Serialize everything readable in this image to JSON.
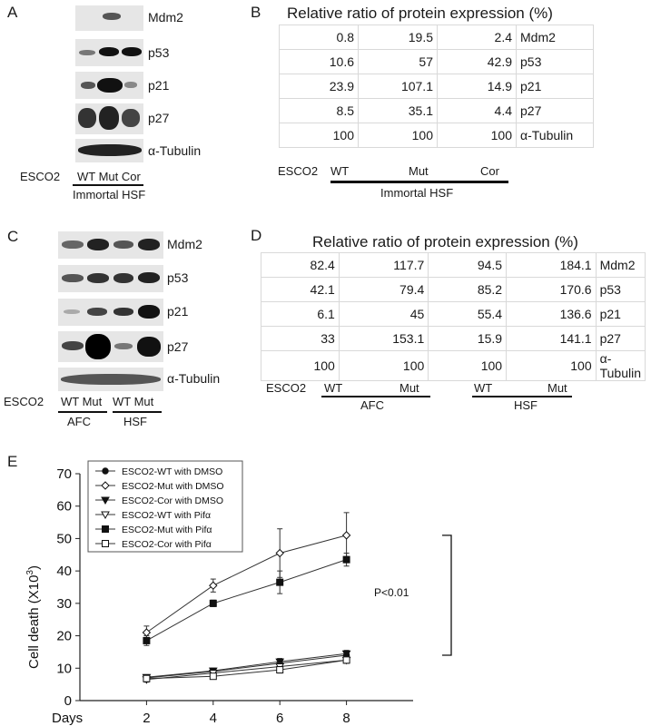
{
  "panelA": {
    "letter": "A",
    "blots": [
      "Mdm2",
      "p53",
      "p21",
      "p27",
      "α-Tubulin"
    ],
    "row_label": "ESCO2",
    "lanes": "WT Mut Cor",
    "group": "Immortal HSF"
  },
  "panelB": {
    "letter": "B",
    "title": "Relative ratio of protein expression (%)",
    "rows": [
      {
        "v": [
          "0.8",
          "19.5",
          "2.4"
        ],
        "label": "Mdm2"
      },
      {
        "v": [
          "10.6",
          "57",
          "42.9"
        ],
        "label": "p53"
      },
      {
        "v": [
          "23.9",
          "107.1",
          "14.9"
        ],
        "label": "p21"
      },
      {
        "v": [
          "8.5",
          "35.1",
          "4.4"
        ],
        "label": "p27"
      },
      {
        "v": [
          "100",
          "100",
          "100"
        ],
        "label": "α-Tubulin"
      }
    ],
    "row_label": "ESCO2",
    "lanes": [
      "WT",
      "Mut",
      "Cor"
    ],
    "group": "Immortal HSF"
  },
  "panelC": {
    "letter": "C",
    "blots": [
      "Mdm2",
      "p53",
      "p21",
      "p27",
      "α-Tubulin"
    ],
    "row_label": "ESCO2",
    "lanes": [
      "WT Mut",
      "WT Mut"
    ],
    "groups": [
      "AFC",
      "HSF"
    ]
  },
  "panelD": {
    "letter": "D",
    "title": "Relative ratio of protein expression (%)",
    "rows": [
      {
        "v": [
          "82.4",
          "117.7",
          "94.5",
          "184.1"
        ],
        "label": "Mdm2"
      },
      {
        "v": [
          "42.1",
          "79.4",
          "85.2",
          "170.6"
        ],
        "label": "p53"
      },
      {
        "v": [
          "6.1",
          "45",
          "55.4",
          "136.6"
        ],
        "label": "p21"
      },
      {
        "v": [
          "33",
          "153.1",
          "15.9",
          "141.1"
        ],
        "label": "p27"
      },
      {
        "v": [
          "100",
          "100",
          "100",
          "100"
        ],
        "label": "α-Tubulin"
      }
    ],
    "row_label": "ESCO2",
    "lanes": [
      "WT",
      "Mut",
      "WT",
      "Mut"
    ],
    "groups": [
      "AFC",
      "HSF"
    ]
  },
  "panelE": {
    "letter": "E",
    "annotation": "P<0.01",
    "chart_data": {
      "type": "line",
      "x": [
        2,
        4,
        6,
        8
      ],
      "xlabel": "Days",
      "ylabel_main": "Cell death (X10",
      "ylabel_sup": "3",
      "ylabel_end": ")",
      "ylim": [
        0,
        70
      ],
      "yticks": [
        0,
        10,
        20,
        30,
        40,
        50,
        60,
        70
      ],
      "xticks": [
        2,
        4,
        6,
        8
      ],
      "series": [
        {
          "name": "ESCO2-WT with DMSO",
          "marker": "circle-filled",
          "values": [
            7,
            9,
            11.5,
            14
          ],
          "err": [
            0.8,
            0.8,
            1,
            1
          ]
        },
        {
          "name": "ESCO2-Mut with DMSO",
          "marker": "diamond-open",
          "values": [
            21,
            35.5,
            45.5,
            51
          ],
          "err": [
            2,
            2,
            7.5,
            7
          ]
        },
        {
          "name": "ESCO2-Cor with DMSO",
          "marker": "triangle-down-filled",
          "values": [
            7.2,
            9.2,
            12,
            14.5
          ],
          "err": [
            0.8,
            0.8,
            1,
            1
          ]
        },
        {
          "name": "ESCO2-WT with Pifα",
          "marker": "triangle-down-open",
          "values": [
            6.5,
            8.5,
            10.5,
            12.5
          ],
          "err": [
            0.8,
            0.8,
            1,
            1
          ]
        },
        {
          "name": "ESCO2-Mut with Pifα",
          "marker": "square-filled",
          "values": [
            18.5,
            30,
            36.5,
            43.5
          ],
          "err": [
            1.5,
            1,
            3.5,
            2
          ]
        },
        {
          "name": "ESCO2-Cor with Pifα",
          "marker": "square-open",
          "values": [
            6.8,
            7.5,
            9.5,
            12.5
          ],
          "err": [
            0.8,
            0.8,
            1,
            1
          ]
        }
      ]
    }
  }
}
